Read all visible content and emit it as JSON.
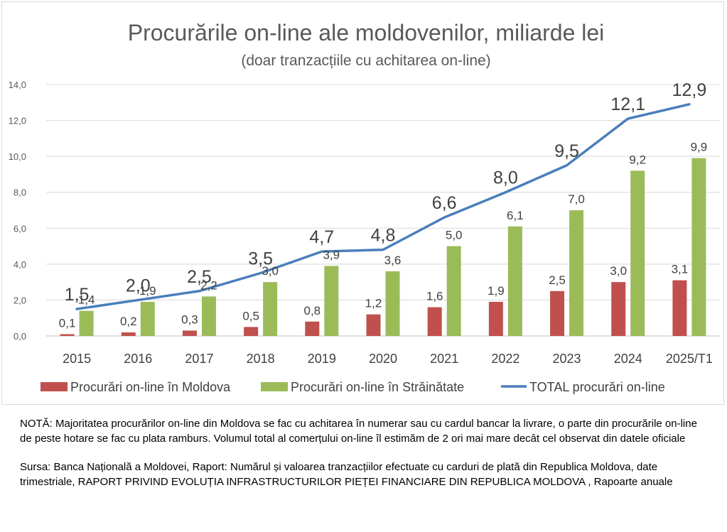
{
  "chart_data": {
    "type": "bar",
    "title": "Procurările on-line ale moldovenilor, miliarde lei",
    "subtitle": "(doar tranzacțiile cu achitarea on-line)",
    "categories": [
      "2015",
      "2016",
      "2017",
      "2018",
      "2019",
      "2020",
      "2021",
      "2022",
      "2023",
      "2024",
      "2025/T1"
    ],
    "series": [
      {
        "name": "Procurări on-line în Moldova",
        "kind": "bar",
        "color": "#c0504d",
        "values": [
          0.1,
          0.2,
          0.3,
          0.5,
          0.8,
          1.2,
          1.6,
          1.9,
          2.5,
          3.0,
          3.1
        ],
        "labels": [
          "0,1",
          "0,2",
          "0,3",
          "0,5",
          "0,8",
          "1,2",
          "1,6",
          "1,9",
          "2,5",
          "3,0",
          "3,1"
        ]
      },
      {
        "name": "Procurări on-line în Străinătate",
        "kind": "bar",
        "color": "#9bbb59",
        "values": [
          1.4,
          1.9,
          2.2,
          3.0,
          3.9,
          3.6,
          5.0,
          6.1,
          7.0,
          9.2,
          9.9
        ],
        "labels": [
          "1,4",
          "1,9",
          "2,2",
          "3,0",
          "3,9",
          "3,6",
          "5,0",
          "6,1",
          "7,0",
          "9,2",
          "9,9"
        ]
      },
      {
        "name": "TOTAL procurări on-line",
        "kind": "line",
        "color": "#4a7ebb",
        "values": [
          1.5,
          2.0,
          2.5,
          3.5,
          4.7,
          4.8,
          6.6,
          8.0,
          9.5,
          12.1,
          12.9
        ],
        "labels": [
          "1,5",
          "2,0",
          "2,5",
          "3,5",
          "4,7",
          "4,8",
          "6,6",
          "8,0",
          "9,5",
          "12,1",
          "12,9"
        ]
      }
    ],
    "ylim": [
      0,
      14
    ],
    "yticks": [
      "0,0",
      "2,0",
      "4,0",
      "6,0",
      "8,0",
      "10,0",
      "12,0",
      "14,0"
    ],
    "grid": true,
    "legend": "bottom"
  },
  "notes": {
    "nota": "NOTĂ: Majoritatea procurărilor on-line din Moldova se fac cu achitarea în numerar sau cu cardul bancar la livrare, o parte din procurările on-line de peste hotare se fac cu plata ramburs. Volumul total al comerțului on-line îl estimăm de 2 ori mai mare decât cel observat din datele oficiale",
    "sursa": "Sursa: Banca Națională a Moldovei, Raport: Numărul și valoarea tranzacțiilor efectuate cu carduri de plată din Republica Moldova, date trimestriale, RAPORT PRIVIND EVOLUȚIA INFRASTRUCTURILOR PIEȚEI FINANCIARE DIN REPUBLICA MOLDOVA , Rapoarte anuale"
  }
}
